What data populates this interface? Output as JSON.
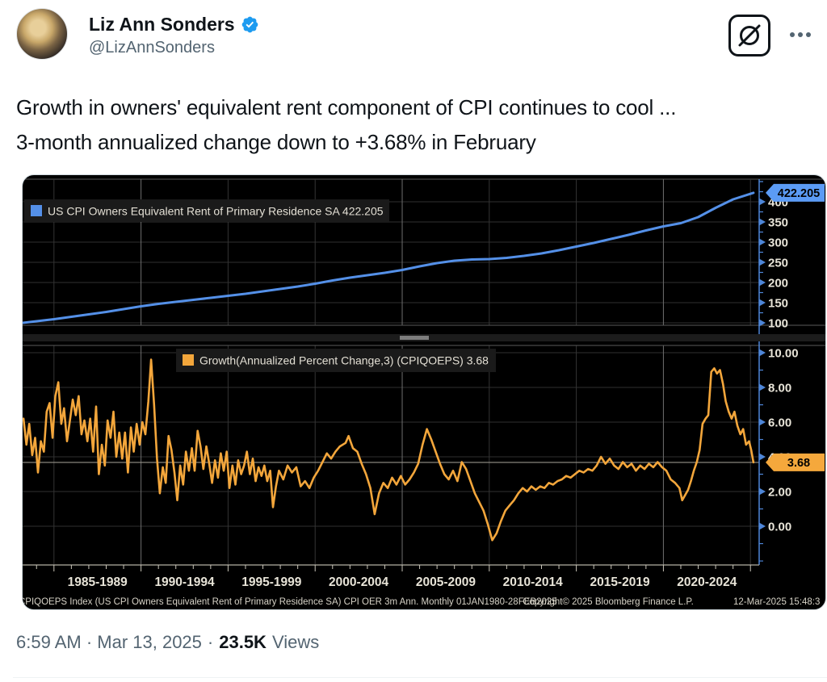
{
  "tweet": {
    "author": {
      "name": "Liz Ann Sonders",
      "handle": "@LizAnnSonders",
      "verified": "verified-account"
    },
    "text_lines": [
      "Growth in owners' equivalent rent component of CPI continues to cool ...",
      "3-month annualized change down to +3.68% in February"
    ],
    "timestamp": "6:59 AM · Mar 13, 2025",
    "separator": "·",
    "views_count": "23.5K",
    "views_label": "Views"
  },
  "icons": {
    "verified": "verified-badge-icon",
    "grok": "grok-slash-circle-icon",
    "more": "more-ellipsis-icon"
  },
  "colors": {
    "accent_blue": "#1d9bf0",
    "text_primary": "#0f1419",
    "text_secondary": "#536471",
    "chart_blue": "#5490e8",
    "chart_orange": "#f3a63b",
    "chart_bg": "#000000"
  },
  "chart_data": {
    "type": "line",
    "x_domain": [
      1983.2,
      2025.5
    ],
    "x_gridlines": [
      1985,
      1990,
      1995,
      2000,
      2005,
      2010,
      2015,
      2020,
      2025
    ],
    "x_bright_gridlines": [
      1990,
      2005,
      2020
    ],
    "x_labels": [
      {
        "text": "1985-1989",
        "center": 1987.5
      },
      {
        "text": "1990-1994",
        "center": 1992.5
      },
      {
        "text": "1995-1999",
        "center": 1997.5
      },
      {
        "text": "2000-2004",
        "center": 2002.5
      },
      {
        "text": "2005-2009",
        "center": 2007.5
      },
      {
        "text": "2010-2014",
        "center": 2012.5
      },
      {
        "text": "2015-2019",
        "center": 2017.5
      },
      {
        "text": "2020-2024",
        "center": 2022.5
      }
    ],
    "footer": {
      "left": "CPIQOEPS Index (US CPI Owners Equivalent Rent of Primary Residence SA) CPI OER 3m Ann.  Monthly 01JAN1980-28FEB2025",
      "center": "Copyright© 2025 Bloomberg Finance L.P.",
      "right": "12-Mar-2025 15:48:3"
    },
    "panels": [
      {
        "id": "oer-index",
        "legend_label": "US CPI Owners Equivalent Rent of Primary Residence SA",
        "legend_value": "422.205",
        "line_color": "#5490e8",
        "badge_color": "#5b9bf5",
        "badge_text": "422.205",
        "badge_value": 422.205,
        "ylim": [
          94,
          456
        ],
        "yticks": [
          {
            "v": 100,
            "label": "100"
          },
          {
            "v": 150,
            "label": "150"
          },
          {
            "v": 200,
            "label": "200"
          },
          {
            "v": 250,
            "label": "250"
          },
          {
            "v": 300,
            "label": "300"
          },
          {
            "v": 350,
            "label": "350"
          },
          {
            "v": 400,
            "label": "400"
          }
        ],
        "y_minor_step": 25,
        "points": [
          [
            1983.2,
            100
          ],
          [
            1984,
            104
          ],
          [
            1985,
            109
          ],
          [
            1986,
            115
          ],
          [
            1987,
            121
          ],
          [
            1988,
            127
          ],
          [
            1989,
            134
          ],
          [
            1990,
            141
          ],
          [
            1991,
            147
          ],
          [
            1992,
            152
          ],
          [
            1993,
            157
          ],
          [
            1994,
            162
          ],
          [
            1995,
            167
          ],
          [
            1996,
            172
          ],
          [
            1997,
            178
          ],
          [
            1998,
            184
          ],
          [
            1999,
            190
          ],
          [
            2000,
            197
          ],
          [
            2001,
            205
          ],
          [
            2002,
            212
          ],
          [
            2003,
            218
          ],
          [
            2004,
            224
          ],
          [
            2005,
            231
          ],
          [
            2006,
            240
          ],
          [
            2007,
            248
          ],
          [
            2008,
            254
          ],
          [
            2009,
            257
          ],
          [
            2010,
            258
          ],
          [
            2011,
            261
          ],
          [
            2012,
            266
          ],
          [
            2013,
            272
          ],
          [
            2014,
            280
          ],
          [
            2015,
            289
          ],
          [
            2016,
            298
          ],
          [
            2017,
            308
          ],
          [
            2018,
            318
          ],
          [
            2019,
            329
          ],
          [
            2020,
            339
          ],
          [
            2021,
            347
          ],
          [
            2022,
            362
          ],
          [
            2023,
            385
          ],
          [
            2024,
            406
          ],
          [
            2025.17,
            422.2
          ]
        ]
      },
      {
        "id": "oer-3m-growth",
        "legend_label": "Growth(Annualized Percent Change,3) (CPIQOEPS)",
        "legend_value": "3.68",
        "line_color": "#f3a63b",
        "badge_color": "#f5a83c",
        "badge_text": "3.68",
        "badge_value": 3.68,
        "last_value_line": 3.68,
        "ylim": [
          -2.23,
          10.42
        ],
        "yticks": [
          {
            "v": 0,
            "label": "0.00"
          },
          {
            "v": 2,
            "label": "2.00"
          },
          {
            "v": 4,
            "label": "4.00"
          },
          {
            "v": 6,
            "label": "6.00"
          },
          {
            "v": 8,
            "label": "8.00"
          },
          {
            "v": 10,
            "label": "10.00"
          }
        ],
        "y_minor_step": 1,
        "points": [
          [
            1983.25,
            6.2
          ],
          [
            1983.42,
            4.7
          ],
          [
            1983.58,
            5.9
          ],
          [
            1983.75,
            4.1
          ],
          [
            1983.92,
            5.1
          ],
          [
            1984.08,
            3.1
          ],
          [
            1984.25,
            4.9
          ],
          [
            1984.42,
            4.3
          ],
          [
            1984.58,
            6.6
          ],
          [
            1984.75,
            7.1
          ],
          [
            1984.92,
            5.1
          ],
          [
            1985.08,
            7.5
          ],
          [
            1985.25,
            8.3
          ],
          [
            1985.42,
            5.9
          ],
          [
            1985.58,
            6.8
          ],
          [
            1985.75,
            4.9
          ],
          [
            1985.92,
            6.1
          ],
          [
            1986.08,
            7.3
          ],
          [
            1986.25,
            6.4
          ],
          [
            1986.42,
            7.5
          ],
          [
            1986.58,
            5.3
          ],
          [
            1986.75,
            6.1
          ],
          [
            1986.92,
            4.9
          ],
          [
            1987.08,
            6.2
          ],
          [
            1987.25,
            4.3
          ],
          [
            1987.42,
            6.9
          ],
          [
            1987.58,
            3.0
          ],
          [
            1987.75,
            4.7
          ],
          [
            1987.92,
            3.5
          ],
          [
            1988.08,
            6.1
          ],
          [
            1988.25,
            5.1
          ],
          [
            1988.42,
            6.6
          ],
          [
            1988.58,
            4.0
          ],
          [
            1988.75,
            5.4
          ],
          [
            1988.92,
            3.9
          ],
          [
            1989.08,
            5.4
          ],
          [
            1989.25,
            3.1
          ],
          [
            1989.42,
            5.7
          ],
          [
            1989.58,
            4.3
          ],
          [
            1989.75,
            5.9
          ],
          [
            1989.92,
            4.7
          ],
          [
            1990.08,
            6.0
          ],
          [
            1990.25,
            5.3
          ],
          [
            1990.42,
            7.2
          ],
          [
            1990.58,
            9.6
          ],
          [
            1990.75,
            7.0
          ],
          [
            1990.92,
            3.9
          ],
          [
            1991.08,
            1.9
          ],
          [
            1991.25,
            3.4
          ],
          [
            1991.42,
            2.5
          ],
          [
            1991.58,
            5.2
          ],
          [
            1991.75,
            4.4
          ],
          [
            1991.92,
            3.1
          ],
          [
            1992.08,
            1.5
          ],
          [
            1992.25,
            3.5
          ],
          [
            1992.42,
            2.4
          ],
          [
            1992.58,
            4.3
          ],
          [
            1992.75,
            3.2
          ],
          [
            1992.92,
            4.5
          ],
          [
            1993.08,
            3.2
          ],
          [
            1993.25,
            5.5
          ],
          [
            1993.42,
            4.6
          ],
          [
            1993.58,
            3.3
          ],
          [
            1993.75,
            4.6
          ],
          [
            1993.92,
            3.6
          ],
          [
            1994.08,
            2.5
          ],
          [
            1994.25,
            3.8
          ],
          [
            1994.42,
            2.8
          ],
          [
            1994.58,
            4.2
          ],
          [
            1994.75,
            3.2
          ],
          [
            1994.92,
            4.3
          ],
          [
            1995.08,
            2.2
          ],
          [
            1995.25,
            3.5
          ],
          [
            1995.42,
            2.4
          ],
          [
            1995.58,
            3.8
          ],
          [
            1995.75,
            3.0
          ],
          [
            1995.92,
            3.5
          ],
          [
            1996.08,
            4.3
          ],
          [
            1996.25,
            3.0
          ],
          [
            1996.42,
            3.9
          ],
          [
            1996.58,
            2.6
          ],
          [
            1996.75,
            3.4
          ],
          [
            1996.92,
            2.9
          ],
          [
            1997.08,
            3.5
          ],
          [
            1997.25,
            2.6
          ],
          [
            1997.42,
            3.2
          ],
          [
            1997.58,
            1.1
          ],
          [
            1997.75,
            2.3
          ],
          [
            1997.92,
            3.2
          ],
          [
            1998.17,
            2.7
          ],
          [
            1998.42,
            3.5
          ],
          [
            1998.67,
            3.1
          ],
          [
            1998.92,
            3.4
          ],
          [
            1999.17,
            2.3
          ],
          [
            1999.42,
            2.6
          ],
          [
            1999.67,
            2.2
          ],
          [
            1999.92,
            2.8
          ],
          [
            2000.17,
            3.2
          ],
          [
            2000.42,
            3.7
          ],
          [
            2000.67,
            4.2
          ],
          [
            2000.92,
            3.9
          ],
          [
            2001.17,
            4.3
          ],
          [
            2001.42,
            4.6
          ],
          [
            2001.75,
            4.8
          ],
          [
            2001.92,
            5.2
          ],
          [
            2002.17,
            4.5
          ],
          [
            2002.42,
            4.3
          ],
          [
            2002.67,
            3.6
          ],
          [
            2002.92,
            3.0
          ],
          [
            2003.17,
            2.2
          ],
          [
            2003.42,
            0.7
          ],
          [
            2003.67,
            1.9
          ],
          [
            2003.92,
            2.5
          ],
          [
            2004.17,
            2.2
          ],
          [
            2004.42,
            2.8
          ],
          [
            2004.67,
            2.4
          ],
          [
            2004.92,
            2.9
          ],
          [
            2005.17,
            2.4
          ],
          [
            2005.42,
            2.7
          ],
          [
            2005.67,
            3.1
          ],
          [
            2005.92,
            3.6
          ],
          [
            2006.17,
            4.7
          ],
          [
            2006.42,
            5.6
          ],
          [
            2006.67,
            5.0
          ],
          [
            2006.92,
            4.3
          ],
          [
            2007.17,
            3.6
          ],
          [
            2007.42,
            3.0
          ],
          [
            2007.67,
            2.7
          ],
          [
            2007.92,
            3.2
          ],
          [
            2008.17,
            2.6
          ],
          [
            2008.42,
            3.7
          ],
          [
            2008.67,
            3.3
          ],
          [
            2008.92,
            2.6
          ],
          [
            2009.17,
            1.9
          ],
          [
            2009.42,
            1.4
          ],
          [
            2009.67,
            0.9
          ],
          [
            2009.92,
            0.1
          ],
          [
            2010.17,
            -0.8
          ],
          [
            2010.42,
            -0.4
          ],
          [
            2010.67,
            0.3
          ],
          [
            2010.92,
            0.9
          ],
          [
            2011.17,
            1.2
          ],
          [
            2011.42,
            1.5
          ],
          [
            2011.67,
            1.9
          ],
          [
            2011.92,
            2.2
          ],
          [
            2012.17,
            2.0
          ],
          [
            2012.42,
            2.3
          ],
          [
            2012.67,
            2.1
          ],
          [
            2012.92,
            2.3
          ],
          [
            2013.17,
            2.2
          ],
          [
            2013.42,
            2.5
          ],
          [
            2013.67,
            2.4
          ],
          [
            2013.92,
            2.6
          ],
          [
            2014.17,
            2.7
          ],
          [
            2014.42,
            2.9
          ],
          [
            2014.67,
            2.8
          ],
          [
            2014.92,
            3.0
          ],
          [
            2015.17,
            3.2
          ],
          [
            2015.42,
            3.1
          ],
          [
            2015.67,
            3.3
          ],
          [
            2015.92,
            3.2
          ],
          [
            2016.17,
            3.5
          ],
          [
            2016.42,
            4.0
          ],
          [
            2016.67,
            3.6
          ],
          [
            2016.92,
            3.9
          ],
          [
            2017.17,
            3.5
          ],
          [
            2017.42,
            3.3
          ],
          [
            2017.67,
            3.7
          ],
          [
            2017.92,
            3.4
          ],
          [
            2018.17,
            3.6
          ],
          [
            2018.42,
            3.2
          ],
          [
            2018.67,
            3.5
          ],
          [
            2018.92,
            3.3
          ],
          [
            2019.17,
            3.6
          ],
          [
            2019.42,
            3.4
          ],
          [
            2019.67,
            3.7
          ],
          [
            2019.92,
            3.4
          ],
          [
            2020.17,
            3.2
          ],
          [
            2020.42,
            2.7
          ],
          [
            2020.67,
            2.5
          ],
          [
            2020.92,
            2.2
          ],
          [
            2021.08,
            1.5
          ],
          [
            2021.25,
            1.8
          ],
          [
            2021.42,
            2.1
          ],
          [
            2021.58,
            2.6
          ],
          [
            2021.75,
            3.2
          ],
          [
            2021.92,
            3.7
          ],
          [
            2022.08,
            4.4
          ],
          [
            2022.25,
            5.9
          ],
          [
            2022.42,
            6.2
          ],
          [
            2022.58,
            6.4
          ],
          [
            2022.75,
            8.9
          ],
          [
            2022.92,
            9.1
          ],
          [
            2023.08,
            8.8
          ],
          [
            2023.25,
            9.0
          ],
          [
            2023.42,
            8.2
          ],
          [
            2023.58,
            7.2
          ],
          [
            2023.75,
            6.6
          ],
          [
            2023.92,
            6.2
          ],
          [
            2024.08,
            6.6
          ],
          [
            2024.25,
            5.8
          ],
          [
            2024.42,
            5.3
          ],
          [
            2024.58,
            5.6
          ],
          [
            2024.75,
            4.7
          ],
          [
            2024.92,
            4.9
          ],
          [
            2025.04,
            4.4
          ],
          [
            2025.17,
            3.68
          ]
        ]
      }
    ]
  }
}
